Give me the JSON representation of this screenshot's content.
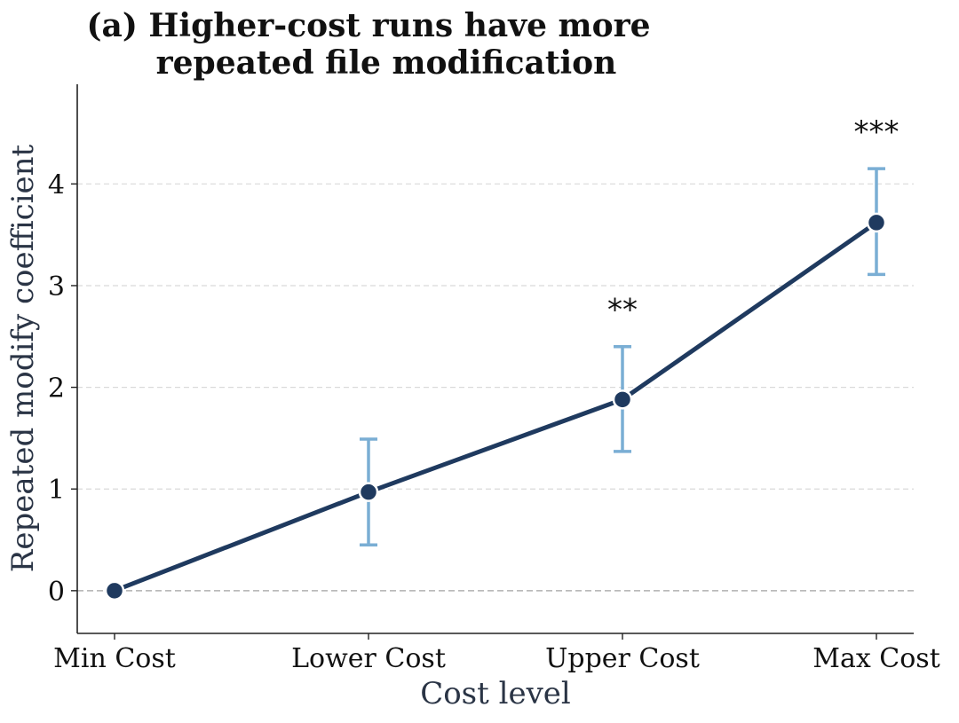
{
  "chart_data": {
    "type": "line",
    "title_lines": [
      "(a) Higher-cost runs have more",
      "repeated file modification"
    ],
    "xlabel": "Cost level",
    "ylabel": "Repeated modify coefficient",
    "categories": [
      "Min Cost",
      "Lower Cost",
      "Upper Cost",
      "Max Cost"
    ],
    "series": [
      {
        "values": [
          0,
          0.97,
          1.88,
          3.62
        ],
        "ci_low": [
          0,
          0.45,
          1.37,
          3.11
        ],
        "ci_high": [
          0,
          1.49,
          2.4,
          4.15
        ],
        "significance": [
          "",
          "",
          "**",
          "***"
        ]
      }
    ],
    "ylim": [
      -0.42,
      4.98
    ],
    "yticks": [
      0,
      1,
      2,
      3,
      4
    ],
    "reference_line": 0,
    "grid": "horizontal dashed",
    "colors": {
      "line": "#1f3a5f",
      "errorbar": "#7aaed4",
      "grid": "#d9d9d9",
      "zero_line": "#b0b0b0"
    }
  }
}
